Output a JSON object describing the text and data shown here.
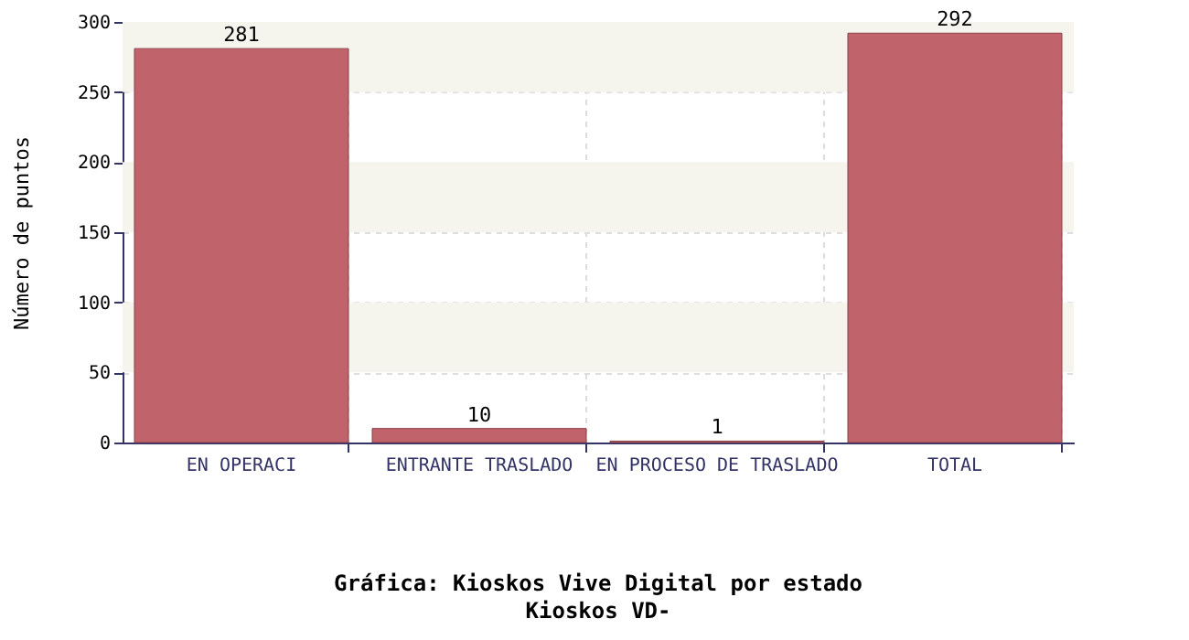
{
  "chart_data": {
    "type": "bar",
    "title": "Gráfica: Kioskos Vive Digital por estado",
    "subtitle": "Kioskos VD-",
    "ylabel": "Número de puntos",
    "categories": [
      "EN OPERACI",
      "ENTRANTE TRASLADO",
      "EN PROCESO DE TRASLADO",
      "TOTAL"
    ],
    "values": [
      281,
      10,
      1,
      292
    ],
    "color": "#c0636b",
    "data_labels": true,
    "ylim": [
      0,
      300
    ],
    "yticks": [
      0,
      50,
      100,
      150,
      200,
      250,
      300
    ],
    "grid": true,
    "bands": [
      {
        "axis": "y",
        "from": 50,
        "to": 100,
        "color": "#f5f5ee"
      },
      {
        "axis": "y",
        "from": 150,
        "to": 200,
        "color": "#f5f5ee"
      },
      {
        "axis": "y",
        "from": 250,
        "to": 300,
        "color": "#f5f5ee"
      }
    ]
  }
}
